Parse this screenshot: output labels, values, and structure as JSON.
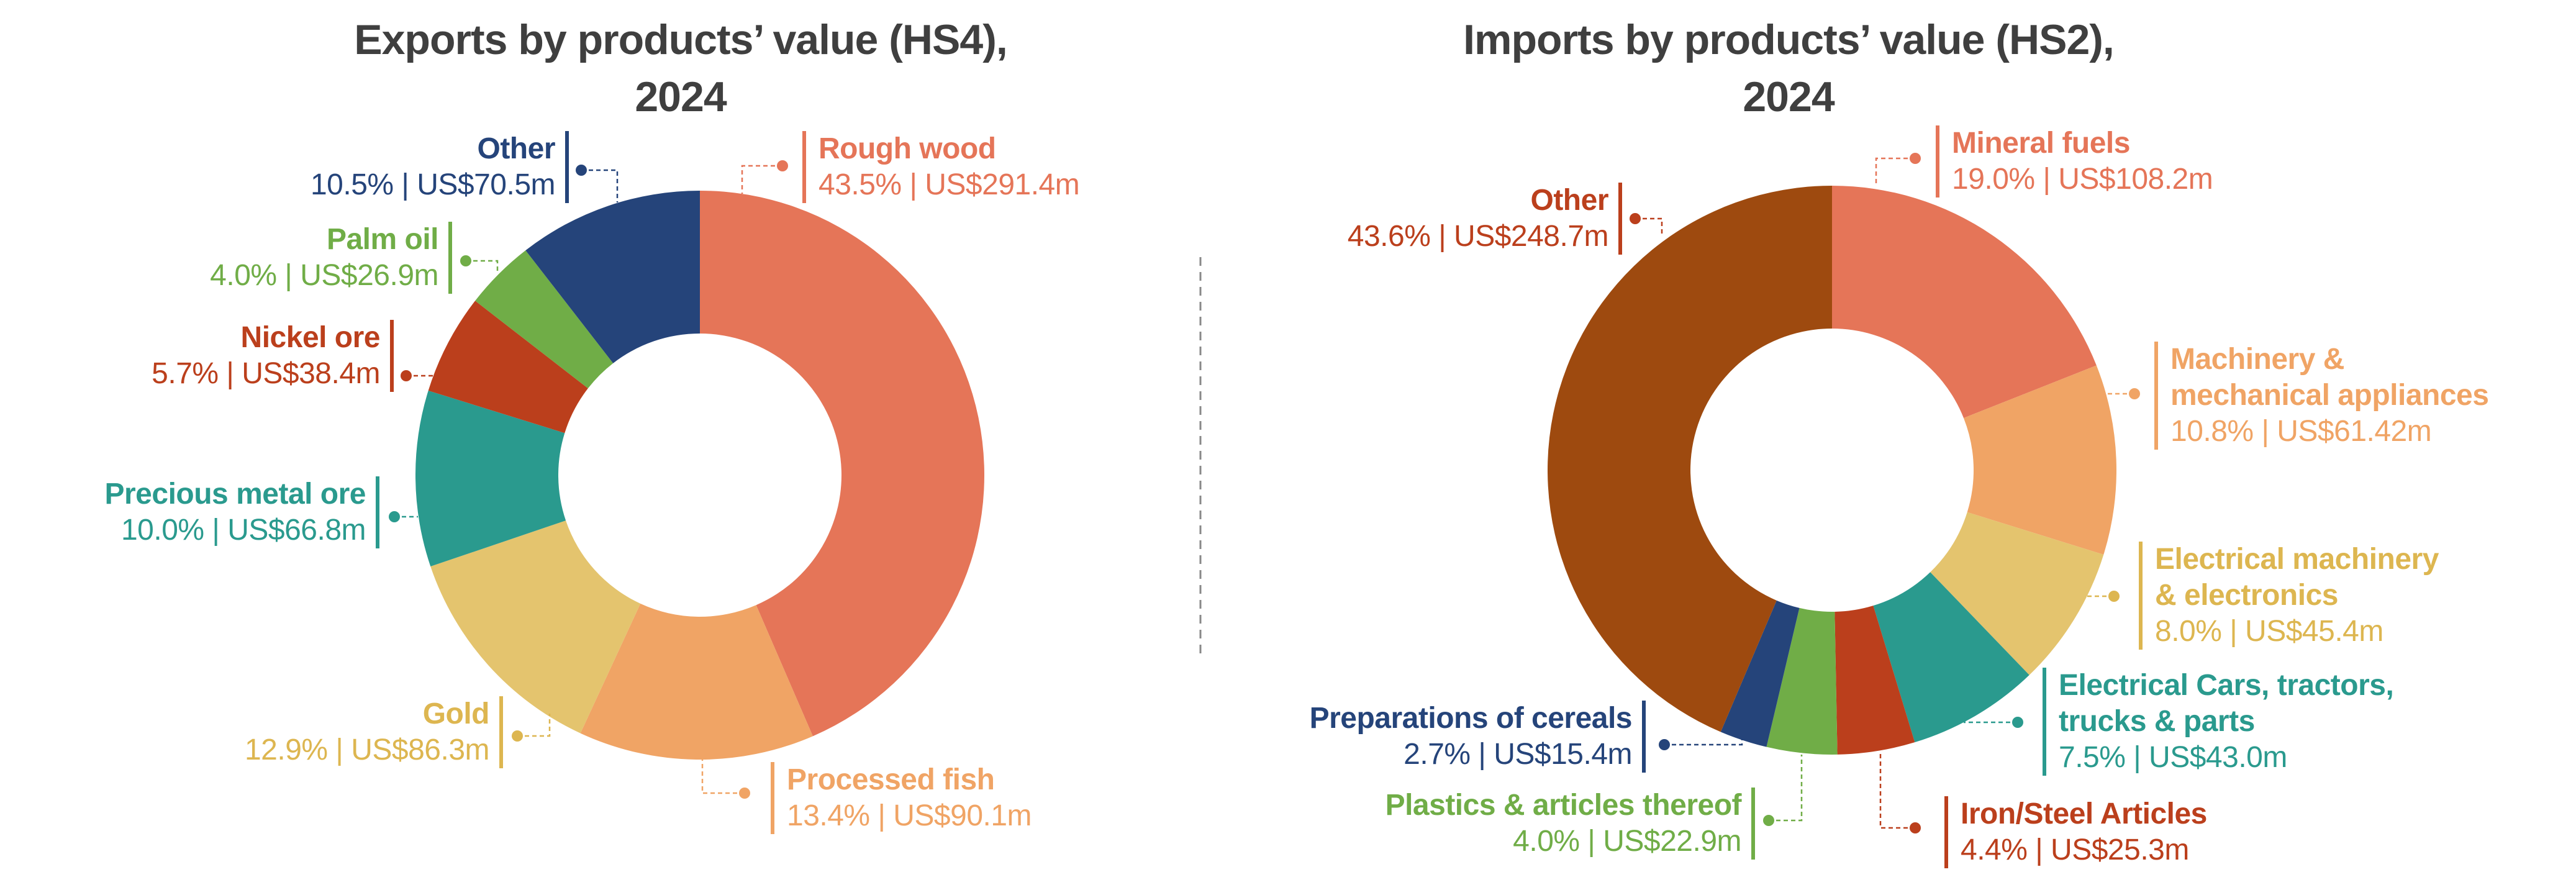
{
  "chart_data": [
    {
      "type": "pie",
      "donut": true,
      "title": "Exports by products’ value (HS4), 2024",
      "title_lines": [
        "Exports by products’ value (HS4),",
        "2024"
      ],
      "start": "top",
      "direction": "clockwise",
      "slices": [
        {
          "label": "Rough wood",
          "percent": 43.5,
          "value_text": "43.5% | US$291.4m",
          "value_usd_m": 291.4,
          "color": "#E57558",
          "text_color": "#E57558"
        },
        {
          "label": "Processed fish",
          "percent": 13.4,
          "value_text": "13.4% | US$90.1m",
          "value_usd_m": 90.1,
          "color": "#F0A465",
          "text_color": "#F0A465"
        },
        {
          "label": "Gold",
          "percent": 12.9,
          "value_text": "12.9% | US$86.3m",
          "value_usd_m": 86.3,
          "color": "#E4C46E",
          "text_color": "#DDB650"
        },
        {
          "label": "Precious metal ore",
          "percent": 10.0,
          "value_text": "10.0% | US$66.8m",
          "value_usd_m": 66.8,
          "color": "#2A9A8E",
          "text_color": "#2A9A8E"
        },
        {
          "label": "Nickel ore",
          "percent": 5.7,
          "value_text": "5.7% | US$38.4m",
          "value_usd_m": 38.4,
          "color": "#BB3F1C",
          "text_color": "#BB3F1C"
        },
        {
          "label": "Palm oil",
          "percent": 4.0,
          "value_text": "4.0% | US$26.9m",
          "value_usd_m": 26.9,
          "color": "#70AD47",
          "text_color": "#70AD47"
        },
        {
          "label": "Other",
          "percent": 10.5,
          "value_text": "10.5% | US$70.5m",
          "value_usd_m": 70.5,
          "color": "#25447A",
          "text_color": "#25447A"
        }
      ]
    },
    {
      "type": "pie",
      "donut": true,
      "title": "Imports by products’ value (HS2), 2024",
      "title_lines": [
        "Imports by products’ value (HS2),",
        "2024"
      ],
      "start": "top",
      "direction": "clockwise",
      "slices": [
        {
          "label": "Mineral fuels",
          "percent": 19.0,
          "value_text": "19.0% | US$108.2m",
          "value_usd_m": 108.2,
          "color": "#E57558",
          "text_color": "#E57558"
        },
        {
          "label": "Machinery & mechanical appliances",
          "label_lines": [
            "Machinery &",
            "mechanical appliances"
          ],
          "percent": 10.8,
          "value_text": "10.8% | US$61.42m",
          "value_usd_m": 61.42,
          "color": "#F0A465",
          "text_color": "#F0A465"
        },
        {
          "label": "Electrical machinery & electronics",
          "label_lines": [
            "Electrical machinery",
            "& electronics"
          ],
          "percent": 8.0,
          "value_text": "8.0% | US$45.4m",
          "value_usd_m": 45.4,
          "color": "#E4C46E",
          "text_color": "#DDB650"
        },
        {
          "label": "Electrical Cars, tractors, trucks & parts",
          "label_lines": [
            "Electrical Cars, tractors,",
            "trucks & parts"
          ],
          "percent": 7.5,
          "value_text": "7.5% | US$43.0m",
          "value_usd_m": 43.0,
          "color": "#2A9A8E",
          "text_color": "#2A9A8E"
        },
        {
          "label": "Iron/Steel Articles",
          "percent": 4.4,
          "value_text": "4.4% | US$25.3m",
          "value_usd_m": 25.3,
          "color": "#BB3F1C",
          "text_color": "#BB3F1C"
        },
        {
          "label": "Plastics & articles thereof",
          "percent": 4.0,
          "value_text": "4.0% | US$22.9m",
          "value_usd_m": 22.9,
          "color": "#70AD47",
          "text_color": "#70AD47"
        },
        {
          "label": "Preparations of cereals",
          "percent": 2.7,
          "value_text": "2.7% | US$15.4m",
          "value_usd_m": 15.4,
          "color": "#25447A",
          "text_color": "#25447A"
        },
        {
          "label": "Other",
          "percent": 43.6,
          "value_text": "43.6% | US$248.7m",
          "value_usd_m": 248.7,
          "color": "#9E4A0F",
          "text_color": "#BB3F1C"
        }
      ]
    }
  ]
}
